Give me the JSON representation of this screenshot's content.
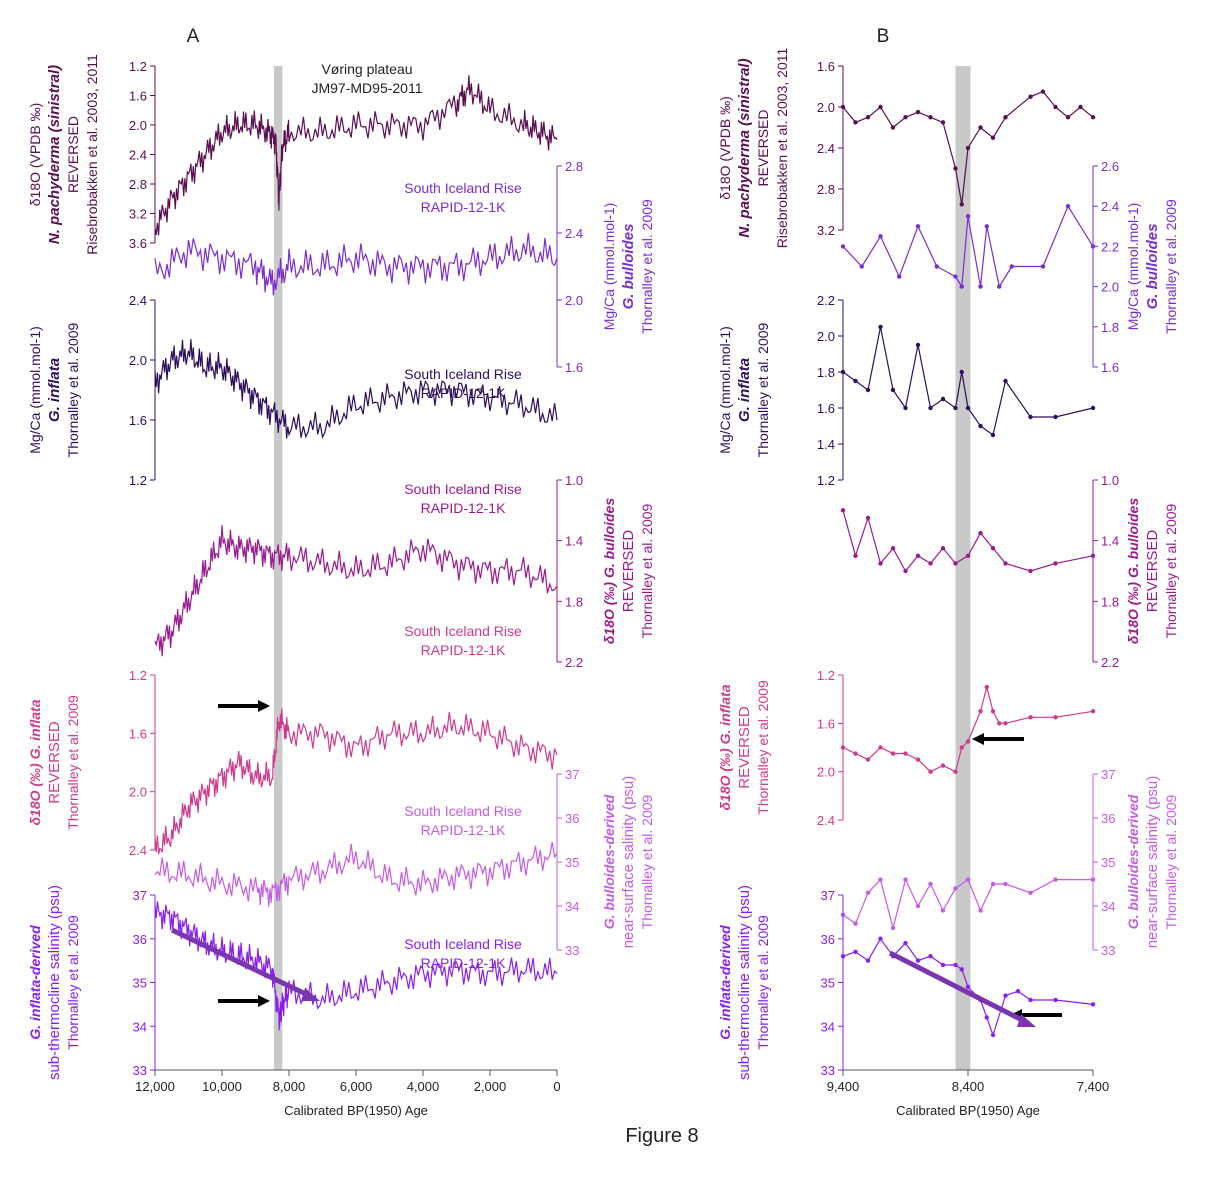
{
  "figure_label": "Figure 8",
  "colors": {
    "npach": "#5a0f52",
    "bull_mgca": "#7a2dd0",
    "infl_mgca": "#2e0f5e",
    "bull_d18o": "#9a1a90",
    "infl_d18o": "#cf3a8e",
    "bull_sal": "#c55be6",
    "infl_sal": "#8a1ef0",
    "shade": "#c9c9c9",
    "arrow_black": "#000000",
    "arrow_purple": "#7b35b0"
  },
  "panels": [
    {
      "id": "A",
      "label": "A",
      "xlabel": "Calibrated BP(1950) Age",
      "x_ticks": [
        "12,000",
        "10,000",
        "8,000",
        "6,000",
        "4,000",
        "2,000",
        "0"
      ],
      "site_label": [
        "Vøring plateau",
        "JM97-MD95-2011"
      ],
      "series_labels": [
        [
          "South Iceland Rise",
          "RAPID-12-1K"
        ],
        [
          "South Iceland Rise",
          "RAPID-12-1K"
        ],
        [
          "South Iceland Rise",
          "RAPID-12-1K"
        ],
        [
          "South Iceland Rise",
          "RAPID-12-1K"
        ],
        [
          "South Iceland Rise",
          "RAPID-12-1K"
        ],
        [
          "South Iceland Rise",
          "RAPID-12-1K"
        ]
      ]
    },
    {
      "id": "B",
      "label": "B",
      "xlabel": "Calibrated BP(1950) Age",
      "x_ticks": [
        "9,400",
        "8,400",
        "7,400"
      ]
    }
  ],
  "axis_titles": {
    "npach": [
      "δ18O (VPDB ‰)",
      "N. pachyderma (sinistral)",
      "REVERSED",
      "Risebrobakken et al. 2003, 2011"
    ],
    "bull_mgca": [
      "Mg/Ca (mmol.mol-1)",
      "G. bulloides",
      "Thornalley et al. 2009"
    ],
    "infl_mgca": [
      "Mg/Ca (mmol.mol-1)",
      "G. inflata",
      "Thornalley et al. 2009"
    ],
    "bull_d18o": [
      "δ18O (‰) G. bulloides",
      "REVERSED",
      "Thornalley et al. 2009"
    ],
    "infl_d18o": [
      "δ18O (‰) G. inflata",
      "REVERSED",
      "Thornalley et al. 2009"
    ],
    "bull_sal": [
      "G. bulloides-derived",
      "near-surface salinity (psu)",
      "Thornalley et al. 2009"
    ],
    "infl_sal": [
      "G. inflata-derived",
      "sub-thermocline salinity (psu)",
      "Thornalley et al. 2009"
    ]
  },
  "chart_data": [
    {
      "type": "line",
      "panel": "A",
      "xlabel": "Calibrated BP(1950) Age",
      "xlim": [
        12000,
        0
      ],
      "shaded_interval": [
        8450,
        8200
      ],
      "series": [
        {
          "key": "npach",
          "ylim": [
            1.2,
            3.6
          ],
          "reversed": true,
          "ticks": [
            "1.2",
            "1.6",
            "2.0",
            "2.4",
            "2.8",
            "3.2",
            "3.6"
          ],
          "x": [
            12000,
            11500,
            11000,
            10500,
            10000,
            9500,
            9000,
            8600,
            8400,
            8300,
            8200,
            8000,
            7000,
            6000,
            5000,
            4000,
            3000,
            2600,
            2000,
            1000,
            500,
            0
          ],
          "values": [
            3.4,
            3.0,
            2.7,
            2.4,
            2.1,
            2.0,
            2.0,
            2.1,
            2.2,
            3.0,
            2.3,
            2.1,
            2.1,
            2.0,
            2.0,
            2.0,
            1.7,
            1.5,
            1.8,
            2.0,
            2.1,
            2.2
          ]
        },
        {
          "key": "bull_mgca",
          "ylim": [
            1.6,
            2.8
          ],
          "reversed": false,
          "ticks": [
            "1.6",
            "2.0",
            "2.4",
            "2.8"
          ],
          "x": [
            12000,
            11000,
            10000,
            9000,
            8500,
            8000,
            7000,
            6000,
            5000,
            4000,
            3000,
            2000,
            1000,
            0
          ],
          "values": [
            2.15,
            2.3,
            2.25,
            2.2,
            2.1,
            2.2,
            2.2,
            2.25,
            2.2,
            2.2,
            2.2,
            2.25,
            2.3,
            2.25
          ]
        },
        {
          "key": "infl_mgca",
          "ylim": [
            1.2,
            2.4
          ],
          "reversed": false,
          "ticks": [
            "1.2",
            "1.6",
            "2.0",
            "2.4"
          ],
          "x": [
            12000,
            11500,
            11000,
            10500,
            10000,
            9500,
            9000,
            8500,
            8000,
            7000,
            6000,
            5000,
            4000,
            3000,
            2000,
            1000,
            0
          ],
          "values": [
            1.85,
            2.0,
            2.05,
            1.95,
            1.95,
            1.85,
            1.75,
            1.65,
            1.55,
            1.55,
            1.7,
            1.75,
            1.8,
            1.8,
            1.75,
            1.7,
            1.6
          ]
        },
        {
          "key": "bull_d18o",
          "ylim": [
            1.0,
            2.2
          ],
          "reversed": true,
          "ticks": [
            "1.0",
            "1.4",
            "1.8",
            "2.2"
          ],
          "x": [
            12000,
            11500,
            11000,
            10500,
            10000,
            9500,
            9000,
            8500,
            8000,
            7000,
            6000,
            5000,
            4000,
            3000,
            2000,
            1000,
            0
          ],
          "values": [
            2.1,
            2.0,
            1.8,
            1.6,
            1.4,
            1.45,
            1.45,
            1.5,
            1.5,
            1.55,
            1.6,
            1.55,
            1.45,
            1.55,
            1.6,
            1.6,
            1.7
          ]
        },
        {
          "key": "infl_d18o",
          "ylim": [
            1.2,
            2.4
          ],
          "reversed": true,
          "ticks": [
            "1.2",
            "1.6",
            "2.0",
            "2.4"
          ],
          "x": [
            12000,
            11500,
            11000,
            10500,
            10000,
            9500,
            9000,
            8500,
            8300,
            8000,
            7000,
            6000,
            5000,
            4000,
            3000,
            2000,
            1000,
            0
          ],
          "values": [
            2.4,
            2.3,
            2.1,
            2.0,
            1.9,
            1.8,
            1.9,
            1.9,
            1.5,
            1.6,
            1.6,
            1.7,
            1.6,
            1.6,
            1.55,
            1.6,
            1.7,
            1.75
          ]
        },
        {
          "key": "bull_sal",
          "ylim": [
            33,
            37
          ],
          "reversed": false,
          "ticks": [
            "33",
            "34",
            "35",
            "36",
            "37"
          ],
          "x": [
            12000,
            11000,
            10000,
            9000,
            8500,
            8000,
            7000,
            6000,
            5000,
            4000,
            3000,
            2000,
            1000,
            0
          ],
          "values": [
            34.8,
            34.7,
            34.5,
            34.4,
            34.3,
            34.6,
            34.8,
            35.1,
            34.6,
            34.5,
            34.7,
            34.8,
            35.0,
            35.2
          ]
        },
        {
          "key": "infl_sal",
          "ylim": [
            33,
            37
          ],
          "reversed": false,
          "ticks": [
            "33",
            "34",
            "35",
            "36",
            "37"
          ],
          "x": [
            12000,
            11500,
            11000,
            10500,
            10000,
            9500,
            9000,
            8500,
            8300,
            8200,
            8000,
            7000,
            6000,
            5000,
            4000,
            3000,
            2000,
            1000,
            0
          ],
          "values": [
            36.6,
            36.5,
            36.2,
            35.9,
            35.7,
            35.6,
            35.5,
            35.3,
            34.2,
            34.5,
            34.8,
            34.6,
            34.8,
            35.0,
            35.2,
            35.3,
            35.2,
            35.3,
            35.2
          ]
        }
      ]
    },
    {
      "type": "line",
      "panel": "B",
      "xlabel": "Calibrated BP(1950) Age",
      "xlim": [
        9400,
        7400
      ],
      "shaded_interval": [
        8500,
        8380
      ],
      "series": [
        {
          "key": "npach",
          "ylim": [
            1.6,
            3.2
          ],
          "reversed": true,
          "ticks": [
            "1.6",
            "2.0",
            "2.4",
            "2.8",
            "3.2"
          ],
          "x": [
            9400,
            9300,
            9200,
            9100,
            9000,
            8900,
            8800,
            8700,
            8600,
            8500,
            8450,
            8400,
            8300,
            8200,
            8100,
            7900,
            7800,
            7700,
            7600,
            7500,
            7400
          ],
          "values": [
            2.0,
            2.15,
            2.1,
            2.0,
            2.2,
            2.1,
            2.05,
            2.1,
            2.15,
            2.6,
            2.95,
            2.4,
            2.2,
            2.3,
            2.1,
            1.9,
            1.85,
            2.0,
            2.1,
            2.0,
            2.1
          ]
        },
        {
          "key": "bull_mgca",
          "ylim": [
            1.6,
            2.6
          ],
          "reversed": false,
          "ticks": [
            "1.6",
            "1.8",
            "2.0",
            "2.2",
            "2.4",
            "2.6"
          ],
          "x": [
            9400,
            9250,
            9100,
            8950,
            8800,
            8650,
            8500,
            8450,
            8400,
            8300,
            8250,
            8150,
            8050,
            7800,
            7600,
            7400
          ],
          "values": [
            2.2,
            2.1,
            2.25,
            2.05,
            2.3,
            2.1,
            2.05,
            2.0,
            2.35,
            2.0,
            2.3,
            2.0,
            2.1,
            2.1,
            2.4,
            2.2
          ]
        },
        {
          "key": "infl_mgca",
          "ylim": [
            1.2,
            2.2
          ],
          "reversed": false,
          "ticks": [
            "1.2",
            "1.4",
            "1.6",
            "1.8",
            "2.0",
            "2.2"
          ],
          "x": [
            9400,
            9300,
            9200,
            9100,
            9000,
            8900,
            8800,
            8700,
            8600,
            8500,
            8450,
            8400,
            8300,
            8200,
            8100,
            7900,
            7700,
            7400
          ],
          "values": [
            1.8,
            1.75,
            1.7,
            2.05,
            1.7,
            1.6,
            1.95,
            1.6,
            1.65,
            1.6,
            1.8,
            1.6,
            1.5,
            1.45,
            1.75,
            1.55,
            1.55,
            1.6
          ]
        },
        {
          "key": "bull_d18o",
          "ylim": [
            1.0,
            2.2
          ],
          "reversed": true,
          "ticks": [
            "1.0",
            "1.4",
            "1.8",
            "2.2"
          ],
          "x": [
            9400,
            9300,
            9200,
            9100,
            9000,
            8900,
            8800,
            8700,
            8600,
            8500,
            8400,
            8300,
            8200,
            8100,
            7900,
            7700,
            7400
          ],
          "values": [
            1.2,
            1.5,
            1.25,
            1.55,
            1.45,
            1.6,
            1.5,
            1.55,
            1.45,
            1.55,
            1.5,
            1.35,
            1.45,
            1.55,
            1.6,
            1.55,
            1.5
          ]
        },
        {
          "key": "infl_d18o",
          "ylim": [
            1.2,
            2.4
          ],
          "reversed": true,
          "ticks": [
            "1.2",
            "1.6",
            "2.0",
            "2.4"
          ],
          "x": [
            9400,
            9300,
            9200,
            9100,
            9000,
            8900,
            8800,
            8700,
            8600,
            8500,
            8450,
            8400,
            8300,
            8250,
            8200,
            8150,
            8100,
            7900,
            7700,
            7400
          ],
          "values": [
            1.8,
            1.85,
            1.9,
            1.8,
            1.85,
            1.85,
            1.9,
            2.0,
            1.95,
            2.0,
            1.8,
            1.75,
            1.5,
            1.3,
            1.5,
            1.6,
            1.6,
            1.55,
            1.55,
            1.5
          ]
        },
        {
          "key": "bull_sal",
          "ylim": [
            33,
            37
          ],
          "reversed": false,
          "ticks": [
            "33",
            "34",
            "35",
            "36",
            "37"
          ],
          "x": [
            9400,
            9300,
            9200,
            9100,
            9000,
            8900,
            8800,
            8700,
            8600,
            8500,
            8400,
            8300,
            8200,
            8100,
            7900,
            7700,
            7400
          ],
          "values": [
            33.8,
            33.6,
            34.3,
            34.6,
            33.5,
            34.6,
            34.0,
            34.5,
            33.9,
            34.4,
            34.6,
            33.9,
            34.5,
            34.5,
            34.3,
            34.6,
            34.6
          ]
        },
        {
          "key": "infl_sal",
          "ylim": [
            33,
            37
          ],
          "reversed": false,
          "ticks": [
            "33",
            "34",
            "35",
            "36",
            "37"
          ],
          "x": [
            9400,
            9300,
            9200,
            9100,
            9000,
            8900,
            8800,
            8700,
            8600,
            8500,
            8450,
            8400,
            8300,
            8250,
            8200,
            8100,
            8000,
            7900,
            7700,
            7400
          ],
          "values": [
            35.6,
            35.7,
            35.5,
            36.0,
            35.6,
            35.9,
            35.5,
            35.6,
            35.4,
            35.4,
            35.3,
            34.9,
            34.6,
            34.2,
            33.8,
            34.7,
            34.8,
            34.6,
            34.6,
            34.5
          ]
        }
      ]
    }
  ]
}
